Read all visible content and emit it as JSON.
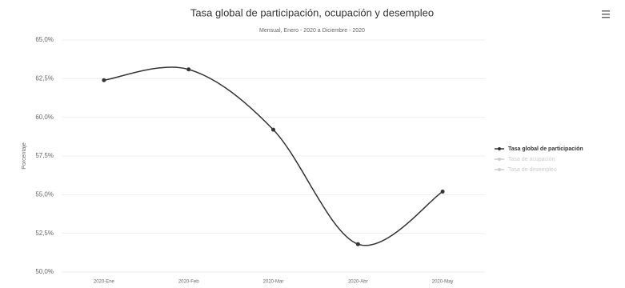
{
  "chart_data": {
    "type": "line",
    "title": "Tasa global de participación, ocupación y desempleo",
    "subtitle": "Mensual, Enero - 2020 a Diciembre - 2020",
    "y_label": "Porcentaje",
    "categories": [
      "2020-Ene",
      "2020-Feb",
      "2020-Mar",
      "2020-Abr",
      "2020-May"
    ],
    "series": [
      {
        "name": "Tasa global de participación",
        "color": "#333333",
        "visible": true,
        "values": [
          62.4,
          63.1,
          59.2,
          51.8,
          55.2
        ]
      },
      {
        "name": "Tasa de ocupación",
        "color": "#cccccc",
        "visible": false,
        "values": [
          null,
          null,
          null,
          null,
          null
        ]
      },
      {
        "name": "Tasa de desempleo",
        "color": "#cccccc",
        "visible": false,
        "values": [
          null,
          null,
          null,
          null,
          null
        ]
      }
    ],
    "ylim": [
      50,
      65
    ],
    "yticks": [
      {
        "value": 50,
        "label": "50,0%"
      },
      {
        "value": 52.5,
        "label": "52,5%"
      },
      {
        "value": 55,
        "label": "55,0%"
      },
      {
        "value": 57.5,
        "label": "57,5%"
      },
      {
        "value": 60,
        "label": "60,0%"
      },
      {
        "value": 62.5,
        "label": "62,5%"
      },
      {
        "value": 65,
        "label": "65,0%"
      }
    ],
    "grid": true,
    "legend": "right"
  }
}
